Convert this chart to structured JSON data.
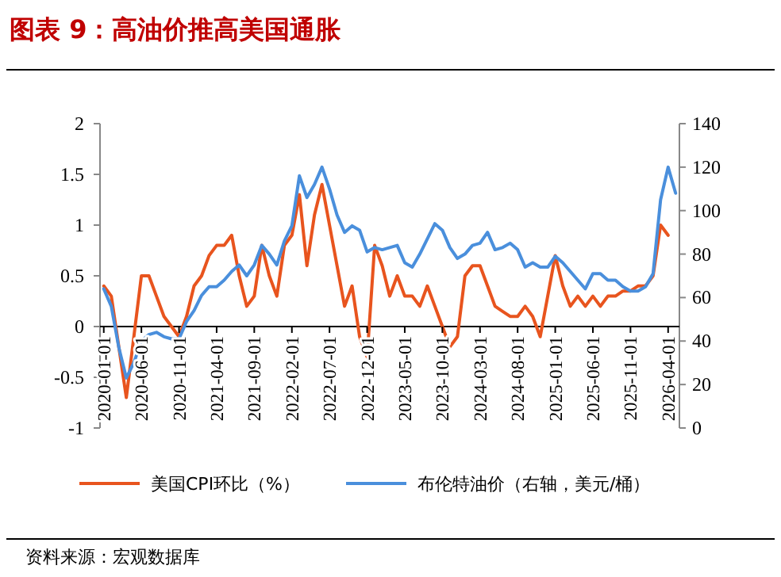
{
  "chart_data": {
    "type": "line",
    "title": "图表 9：高油价推高美国通胀",
    "annotations": [
      "资料来源：宏观数据库"
    ],
    "categories": [
      "2020-01-01",
      null,
      null,
      null,
      null,
      "2020-06-01",
      null,
      null,
      null,
      null,
      "2020-11-01",
      null,
      null,
      null,
      null,
      "2021-04-01",
      null,
      null,
      null,
      null,
      "2021-09-01",
      null,
      null,
      null,
      null,
      "2022-02-01",
      null,
      null,
      null,
      null,
      "2022-07-01",
      null,
      null,
      null,
      null,
      "2022-12-01",
      null,
      null,
      null,
      null,
      "2023-05-01",
      null,
      null,
      null,
      null,
      "2023-10-01",
      null,
      null,
      null,
      null,
      "2024-03-01",
      null,
      null,
      null,
      null,
      "2024-08-01",
      null,
      null,
      null,
      null,
      "2025-01-01",
      null,
      null,
      null,
      null,
      "2025-06-01",
      null,
      null,
      null,
      null,
      "2025-11-01",
      null,
      null,
      null,
      null,
      "2026-04-01",
      null
    ],
    "series": [
      {
        "name": "美国CPI环比（%）",
        "color": "#e8541e",
        "values": [
          0.4,
          0.3,
          -0.2,
          -0.7,
          -0.1,
          0.5,
          0.5,
          0.3,
          0.1,
          0.0,
          -0.1,
          0.1,
          0.4,
          0.5,
          0.7,
          0.8,
          0.8,
          0.9,
          0.5,
          0.2,
          0.3,
          0.8,
          0.5,
          0.3,
          0.8,
          0.9,
          1.3,
          0.6,
          1.1,
          1.4,
          1.0,
          0.6,
          0.2,
          0.4,
          -0.1,
          -0.3,
          0.8,
          0.6,
          0.3,
          0.5,
          0.3,
          0.3,
          0.2,
          0.4,
          0.2,
          0.0,
          -0.2,
          -0.1,
          0.5,
          0.6,
          0.6,
          0.4,
          0.2,
          0.15,
          0.1,
          0.1,
          0.2,
          0.1,
          -0.1,
          0.3,
          0.7,
          0.4,
          0.2,
          0.3,
          0.2,
          0.3,
          0.2,
          0.3,
          0.3,
          0.35,
          0.35,
          0.4,
          0.4,
          0.5,
          1.0,
          0.9,
          null
        ]
      },
      {
        "name": "布伦特油价（右轴，美元/桶）",
        "color": "#4a8fdc",
        "axis": "y2",
        "values": [
          64,
          56,
          37,
          23,
          30,
          40,
          43,
          44,
          42,
          41,
          41,
          49,
          54,
          61,
          65,
          65,
          68,
          72,
          75,
          70,
          75,
          84,
          80,
          75,
          86,
          93,
          116,
          106,
          112,
          120,
          110,
          98,
          90,
          93,
          91,
          81,
          83,
          82,
          83,
          84,
          76,
          74,
          80,
          87,
          94,
          91,
          83,
          78,
          80,
          84,
          85,
          90,
          82,
          83,
          85,
          82,
          74,
          76,
          74,
          74,
          79,
          76,
          72,
          68,
          64,
          71,
          71,
          68,
          68,
          65,
          63,
          63,
          65,
          71,
          105,
          120,
          108
        ]
      }
    ],
    "ylim": [
      -1,
      2
    ],
    "yticks": [
      -1,
      -0.5,
      0,
      0.5,
      1,
      1.5,
      2
    ],
    "y2lim": [
      0,
      140
    ],
    "y2ticks": [
      0,
      20,
      40,
      60,
      80,
      100,
      120,
      140
    ],
    "legend": "bottom",
    "grid": false
  }
}
